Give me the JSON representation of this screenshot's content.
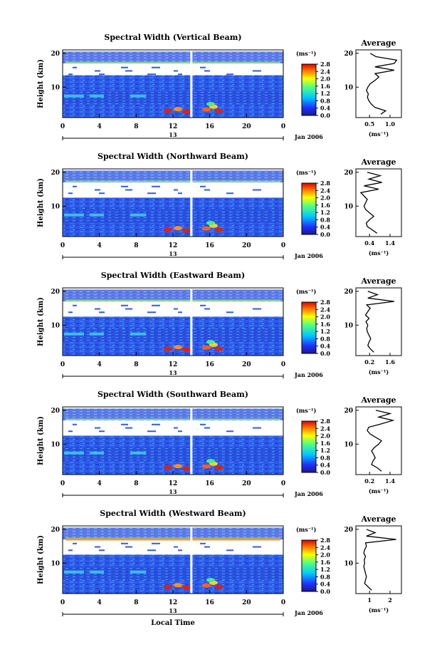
{
  "chart_data": [
    {
      "type": "heatmap",
      "title": "Spectral Width (Vertical Beam)",
      "ylabel": "Height (km)",
      "colorbar": {
        "label": "(ms⁻¹)",
        "ticks": [
          "2.8",
          "2.4",
          "2.0",
          "1.6",
          "1.2",
          "0.8",
          "0.4",
          "0.0"
        ]
      },
      "average_profile": {
        "title": "Average",
        "xlabel": "(ms⁻¹)",
        "xticks": [
          "0.5",
          "1.0"
        ],
        "yticks": [
          "20",
          "10"
        ],
        "xlim": [
          0.2,
          1.15
        ],
        "points": [
          [
            0.72,
            2
          ],
          [
            0.82,
            3
          ],
          [
            0.6,
            4
          ],
          [
            0.52,
            5
          ],
          [
            0.47,
            6
          ],
          [
            0.44,
            7
          ],
          [
            0.46,
            8
          ],
          [
            0.42,
            9
          ],
          [
            0.45,
            10
          ],
          [
            0.5,
            11
          ],
          [
            0.6,
            12
          ],
          [
            0.68,
            13
          ],
          [
            0.6,
            14
          ],
          [
            1.0,
            15
          ],
          [
            0.6,
            16
          ],
          [
            1.0,
            17
          ],
          [
            1.05,
            18
          ],
          [
            0.62,
            19
          ],
          [
            0.5,
            20
          ]
        ]
      }
    },
    {
      "type": "heatmap",
      "title": "Spectral Width (Northward Beam)",
      "ylabel": "Height (km)",
      "colorbar": {
        "label": "(ms⁻¹)",
        "ticks": [
          "2.8",
          "2.4",
          "2.0",
          "1.6",
          "1.2",
          "0.8",
          "0.4",
          "0.0"
        ]
      },
      "average_profile": {
        "title": "Average",
        "xlabel": "(ms⁻¹)",
        "xticks": [
          "0.4",
          "1.4"
        ],
        "yticks": [
          "20",
          "10"
        ],
        "xlim": [
          0.2,
          1.6
        ],
        "points": [
          [
            0.85,
            2
          ],
          [
            0.7,
            3
          ],
          [
            0.55,
            4
          ],
          [
            0.52,
            5
          ],
          [
            0.62,
            6
          ],
          [
            0.75,
            7
          ],
          [
            0.62,
            8
          ],
          [
            0.5,
            9
          ],
          [
            0.45,
            10
          ],
          [
            0.5,
            11
          ],
          [
            0.55,
            12
          ],
          [
            0.45,
            13
          ],
          [
            0.35,
            14
          ],
          [
            0.9,
            15
          ],
          [
            0.45,
            16
          ],
          [
            1.0,
            17
          ],
          [
            0.6,
            18
          ],
          [
            0.95,
            19
          ],
          [
            0.55,
            20
          ]
        ]
      }
    },
    {
      "type": "heatmap",
      "title": "Spectral Width (Eastward Beam)",
      "ylabel": "Height (km)",
      "colorbar": {
        "label": "(ms⁻¹)",
        "ticks": [
          "2.8",
          "2.4",
          "2.0",
          "1.6",
          "1.2",
          "0.8",
          "0.4",
          "0.0"
        ]
      },
      "average_profile": {
        "title": "Average",
        "xlabel": "(ms⁻¹)",
        "xticks": [
          "0.2",
          "1.6"
        ],
        "yticks": [
          "20",
          "10"
        ],
        "xlim": [
          0.0,
          1.9
        ],
        "points": [
          [
            0.75,
            2
          ],
          [
            0.6,
            3
          ],
          [
            0.5,
            4
          ],
          [
            0.55,
            5
          ],
          [
            0.62,
            6
          ],
          [
            0.55,
            7
          ],
          [
            0.48,
            8
          ],
          [
            0.45,
            9
          ],
          [
            0.5,
            10
          ],
          [
            0.42,
            11
          ],
          [
            0.55,
            12
          ],
          [
            0.4,
            13
          ],
          [
            0.5,
            14
          ],
          [
            0.6,
            15
          ],
          [
            0.45,
            16
          ],
          [
            1.6,
            17
          ],
          [
            0.5,
            18
          ],
          [
            0.9,
            19
          ],
          [
            0.5,
            20
          ]
        ]
      }
    },
    {
      "type": "heatmap",
      "title": "Spectral Width (Southward Beam)",
      "ylabel": "Height (km)",
      "colorbar": {
        "label": "(ms⁻¹)",
        "ticks": [
          "2.8",
          "2.4",
          "2.0",
          "1.6",
          "1.2",
          "0.8",
          "0.4",
          "0.0"
        ]
      },
      "average_profile": {
        "title": "Average",
        "xlabel": "(ms⁻¹)",
        "xticks": [
          "0.2",
          "1.4"
        ],
        "yticks": [
          "20",
          "10"
        ],
        "xlim": [
          0.0,
          1.6
        ],
        "points": [
          [
            0.9,
            2
          ],
          [
            0.75,
            3
          ],
          [
            0.55,
            4
          ],
          [
            0.6,
            5
          ],
          [
            0.68,
            6
          ],
          [
            0.62,
            7
          ],
          [
            0.55,
            8
          ],
          [
            0.65,
            9
          ],
          [
            0.8,
            10
          ],
          [
            0.9,
            11
          ],
          [
            0.7,
            12
          ],
          [
            0.5,
            13
          ],
          [
            0.4,
            14
          ],
          [
            0.45,
            15
          ],
          [
            0.9,
            16
          ],
          [
            1.3,
            17
          ],
          [
            0.8,
            18
          ],
          [
            1.2,
            19
          ],
          [
            0.7,
            20
          ]
        ]
      }
    },
    {
      "type": "heatmap",
      "title": "Spectral Width (Westward Beam)",
      "ylabel": "Height (km)",
      "xlabel": "Local Time",
      "colorbar": {
        "label": "(ms⁻¹)",
        "ticks": [
          "2.8",
          "2.4",
          "2.0",
          "1.6",
          "1.2",
          "0.8",
          "0.4",
          "0.0"
        ]
      },
      "average_profile": {
        "title": "Average",
        "xlabel": "(ms⁻¹)",
        "xticks": [
          "1",
          "2"
        ],
        "yticks": [
          "20",
          "10"
        ],
        "xlim": [
          0.0,
          2.6
        ],
        "points": [
          [
            0.9,
            2
          ],
          [
            0.7,
            3
          ],
          [
            0.5,
            4
          ],
          [
            0.55,
            5
          ],
          [
            0.6,
            6
          ],
          [
            0.55,
            7
          ],
          [
            0.5,
            8
          ],
          [
            0.45,
            9
          ],
          [
            0.5,
            10
          ],
          [
            0.48,
            11
          ],
          [
            0.55,
            12
          ],
          [
            0.45,
            13
          ],
          [
            0.5,
            14
          ],
          [
            0.6,
            15
          ],
          [
            0.55,
            16
          ],
          [
            2.3,
            17
          ],
          [
            0.6,
            18
          ],
          [
            1.1,
            19
          ],
          [
            0.6,
            20
          ]
        ]
      }
    }
  ],
  "shared": {
    "xticks": [
      "0",
      "4",
      "8",
      "12",
      "16",
      "20",
      "0"
    ],
    "yticks": [
      "20",
      "10"
    ],
    "date_marker": "13",
    "date_label": "Jan 2006"
  }
}
